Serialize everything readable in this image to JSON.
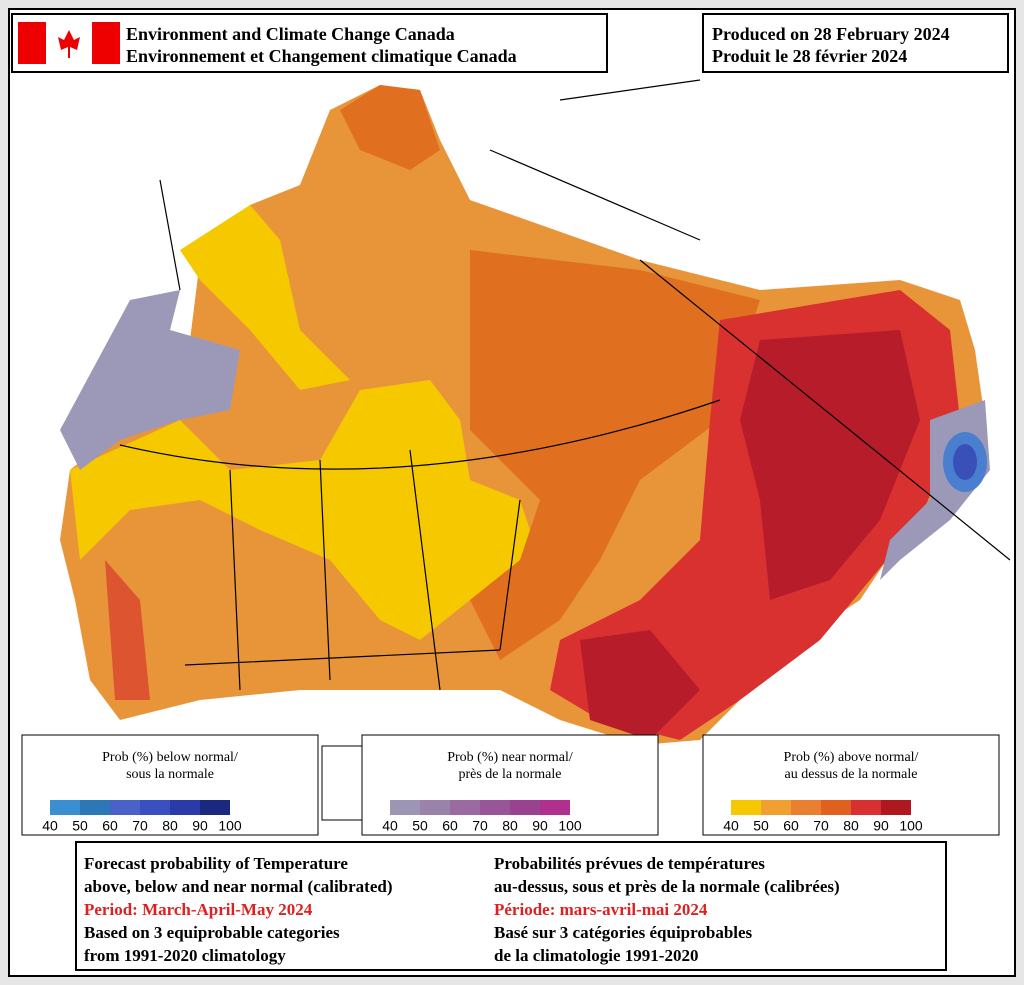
{
  "header": {
    "agency": [
      "Environment and Climate Change Canada",
      "Environnement et Changement climatique Canada"
    ],
    "produced": [
      "Produced on 28 February 2024",
      "Produit le 28 février 2024"
    ]
  },
  "legends": [
    {
      "title": [
        "Prob (%) below normal/",
        "sous la normale"
      ],
      "ticks": [
        40,
        50,
        60,
        70,
        80,
        90,
        100
      ],
      "colors": [
        "#3a8fd0",
        "#2a78b8",
        "#4a62c8",
        "#3a50c0",
        "#2a3aa8",
        "#1a2880"
      ]
    },
    {
      "title": [
        "Prob (%) near normal/",
        "près de la normale"
      ],
      "ticks": [
        40,
        50,
        60,
        70,
        80,
        90,
        100
      ],
      "colors": [
        "#9c96b4",
        "#9a82a8",
        "#9a6aa0",
        "#985598",
        "#984290",
        "#b03090"
      ]
    },
    {
      "title": [
        "Prob (%) above normal/",
        "au dessus de la normale"
      ],
      "ticks": [
        40,
        50,
        60,
        70,
        80,
        90,
        100
      ],
      "colors": [
        "#f5c800",
        "#f0a030",
        "#e88030",
        "#e06020",
        "#d83030",
        "#b01820"
      ]
    }
  ],
  "footer": {
    "english": [
      "Forecast probability of Temperature",
      "above, below and near normal (calibrated)",
      "Period: March-April-May 2024",
      "Based on 3 equiprobable categories",
      " from 1991-2020 climatology"
    ],
    "french": [
      "Probabilités prévues de températures",
      "au-dessus, sous et près de la normale (calibrées)",
      "Période: mars-avril-mai 2024",
      "Basé sur 3 catégories équiprobables",
      "de la climatologie 1991-2020"
    ]
  }
}
